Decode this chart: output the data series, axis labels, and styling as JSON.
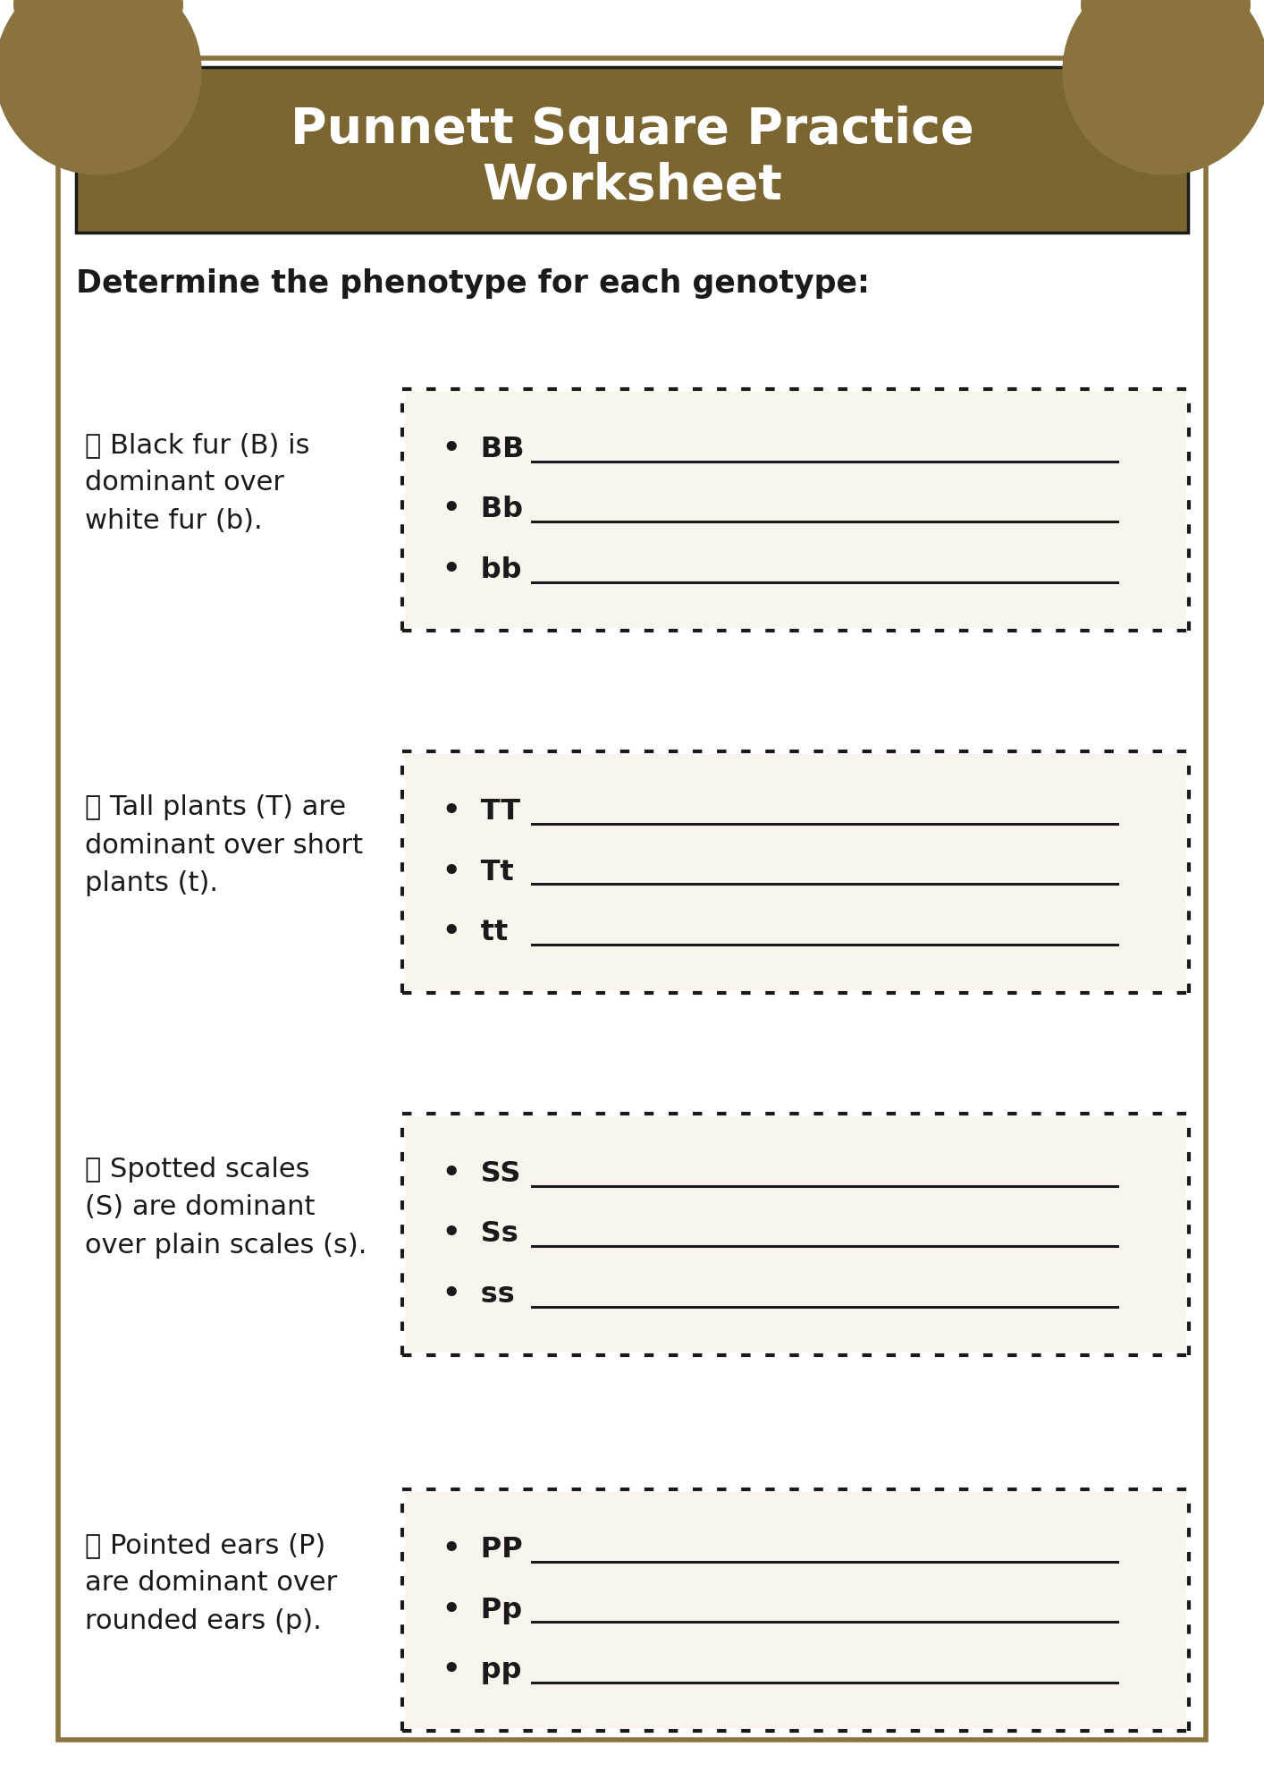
{
  "title_line1": "Punnett Square Practice",
  "title_line2": "Worksheet",
  "title_color": "#ffffff",
  "title_bg_color": "#7B6530",
  "page_bg_color": "#ffffff",
  "border_color": "#8B7340",
  "section_heading": "Determine the phenotype for each genotype:",
  "box_bg_color": "#FAF5EC",
  "corner_color": "#8B7340",
  "sections": [
    {
      "emoji": "🐾",
      "description": " Black fur (B) is\ndominant over\nwhite fur (b).",
      "items": [
        "BB",
        "Bb",
        "bb"
      ]
    },
    {
      "emoji": "🌽",
      "description": " Tall plants (T) are\ndominant over short\nplants (t).",
      "items": [
        "TT",
        "Tt",
        "tt"
      ]
    },
    {
      "emoji": "🐠",
      "description": " Spotted scales\n(S) are dominant\nover plain scales (s).",
      "items": [
        "SS",
        "Ss",
        "ss"
      ]
    },
    {
      "emoji": "👂",
      "description": " Pointed ears (P)\nare dominant over\nrounded ears (p).",
      "items": [
        "PP",
        "Pp",
        "pp"
      ]
    }
  ]
}
